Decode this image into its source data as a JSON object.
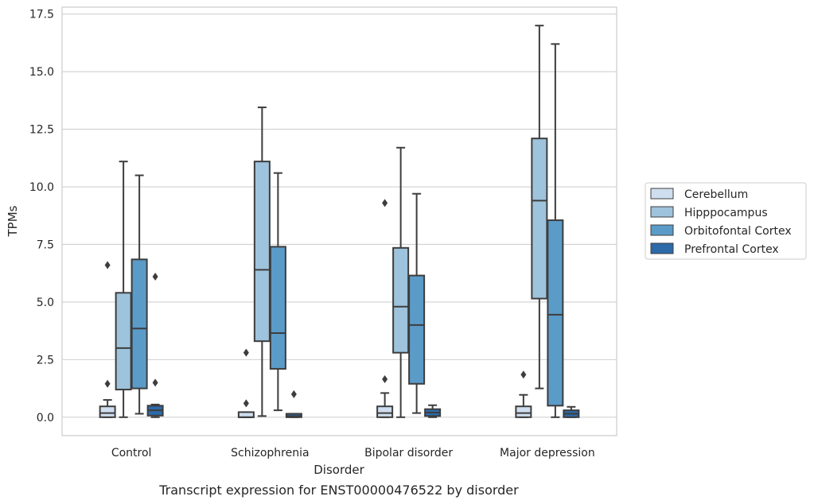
{
  "chart_data": {
    "type": "boxplot",
    "caption": "Transcript expression for ENST00000476522 by disorder",
    "xlabel": "Disorder",
    "ylabel": "TPMs",
    "ylim": [
      -0.8,
      17.8
    ],
    "yticks": [
      "0.0",
      "2.5",
      "5.0",
      "7.5",
      "10.0",
      "12.5",
      "15.0",
      "17.5"
    ],
    "ytick_values": [
      0,
      2.5,
      5,
      7.5,
      10,
      12.5,
      15,
      17.5
    ],
    "grid": true,
    "legend_position": "right",
    "categories": [
      "Control",
      "Schizophrenia",
      "Bipolar disorder",
      "Major depression"
    ],
    "series": [
      {
        "name": "Cerebellum",
        "color": "#cfdeef",
        "boxes": [
          {
            "whislo": 0.0,
            "q1": 0.0,
            "med": 0.18,
            "q3": 0.47,
            "whishi": 0.75,
            "fliers": [
              1.45,
              6.6
            ]
          },
          {
            "whislo": 0.0,
            "q1": 0.0,
            "med": 0.0,
            "q3": 0.22,
            "whishi": 0.22,
            "fliers": [
              0.6,
              2.8
            ]
          },
          {
            "whislo": 0.0,
            "q1": 0.0,
            "med": 0.18,
            "q3": 0.47,
            "whishi": 1.05,
            "fliers": [
              1.65,
              9.3
            ]
          },
          {
            "whislo": 0.0,
            "q1": 0.0,
            "med": 0.18,
            "q3": 0.47,
            "whishi": 0.97,
            "fliers": [
              1.85
            ]
          }
        ]
      },
      {
        "name": "Hipppocampus",
        "color": "#9ec3dc",
        "boxes": [
          {
            "whislo": 0.0,
            "q1": 1.2,
            "med": 3.0,
            "q3": 5.4,
            "whishi": 11.1,
            "fliers": []
          },
          {
            "whislo": 0.05,
            "q1": 3.3,
            "med": 6.4,
            "q3": 11.1,
            "whishi": 13.45,
            "fliers": []
          },
          {
            "whislo": 0.0,
            "q1": 2.8,
            "med": 4.8,
            "q3": 7.35,
            "whishi": 11.7,
            "fliers": []
          },
          {
            "whislo": 1.25,
            "q1": 5.15,
            "med": 9.4,
            "q3": 12.1,
            "whishi": 17.0,
            "fliers": []
          }
        ]
      },
      {
        "name": "Orbitofontal Cortex",
        "color": "#5b9bc8",
        "boxes": [
          {
            "whislo": 0.15,
            "q1": 1.25,
            "med": 3.85,
            "q3": 6.85,
            "whishi": 10.5,
            "fliers": []
          },
          {
            "whislo": 0.3,
            "q1": 2.1,
            "med": 3.65,
            "q3": 7.4,
            "whishi": 10.6,
            "fliers": []
          },
          {
            "whislo": 0.18,
            "q1": 1.45,
            "med": 4.0,
            "q3": 6.15,
            "whishi": 9.7,
            "fliers": []
          },
          {
            "whislo": 0.0,
            "q1": 0.5,
            "med": 4.45,
            "q3": 8.55,
            "whishi": 16.2,
            "fliers": []
          }
        ]
      },
      {
        "name": "Prefrontal Cortex",
        "color": "#2c6aa8",
        "boxes": [
          {
            "whislo": 0.0,
            "q1": 0.07,
            "med": 0.3,
            "q3": 0.5,
            "whishi": 0.55,
            "fliers": [
              1.5,
              6.1
            ]
          },
          {
            "whislo": 0.0,
            "q1": 0.0,
            "med": 0.05,
            "q3": 0.15,
            "whishi": 0.15,
            "fliers": [
              1.0
            ]
          },
          {
            "whislo": 0.0,
            "q1": 0.05,
            "med": 0.2,
            "q3": 0.35,
            "whishi": 0.52,
            "fliers": []
          },
          {
            "whislo": 0.0,
            "q1": 0.0,
            "med": 0.15,
            "q3": 0.3,
            "whishi": 0.45,
            "fliers": []
          }
        ]
      }
    ]
  }
}
